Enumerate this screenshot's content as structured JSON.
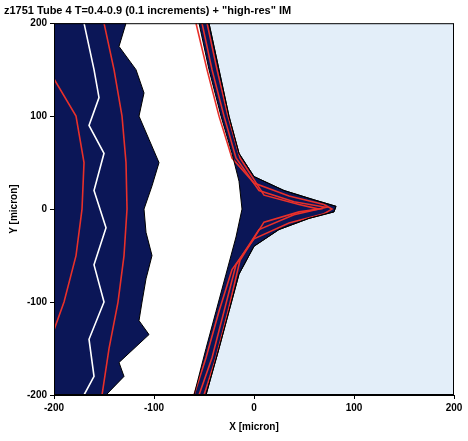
{
  "chart_data": {
    "type": "contour",
    "title": "z1751 Tube 4 T=0.4-0.9 (0.1 increments) + \"high-res\" IM",
    "x_label": "X [micron]",
    "y_label": "Y [micron]",
    "xlim": [
      -200,
      200
    ],
    "xticks": [
      -200,
      -100,
      0,
      100,
      200
    ],
    "ylim": [
      -200,
      200
    ],
    "yticks": [
      -200,
      -100,
      0,
      100,
      200
    ],
    "grid": false,
    "series": [
      {
        "type": "area",
        "color": "#e3eef9",
        "x": [
          -45,
          -35,
          -25,
          -15,
          0,
          30,
          60,
          82,
          80,
          55,
          25,
          0,
          -15,
          -25,
          -35,
          -48,
          200,
          200
        ],
        "values": [
          200,
          150,
          100,
          60,
          35,
          20,
          10,
          3,
          -3,
          -10,
          -22,
          -40,
          -70,
          -110,
          -150,
          -200,
          -200,
          200
        ]
      },
      {
        "type": "area",
        "color": "#0b1657",
        "x": [
          -200,
          -128,
          -135,
          -118,
          -110,
          -115,
          -105,
          -95,
          -102,
          -110,
          -108,
          -102,
          -108,
          -112,
          -115,
          -105,
          -120,
          -135,
          -130,
          -148,
          -200
        ],
        "values": [
          200,
          200,
          175,
          150,
          125,
          100,
          75,
          50,
          25,
          0,
          -25,
          -50,
          -75,
          -100,
          -120,
          -135,
          -150,
          -165,
          -180,
          -200,
          -200
        ]
      },
      {
        "type": "area",
        "color": "#0b1657",
        "x": [
          -55,
          -45,
          -33,
          -22,
          -15,
          -12,
          -18,
          -28,
          -38,
          -48,
          -60,
          -48,
          -35,
          -25,
          -15,
          0,
          25,
          55,
          80,
          82,
          60,
          30,
          0,
          -15,
          -25,
          -35,
          -45
        ],
        "values": [
          200,
          150,
          100,
          60,
          30,
          0,
          -30,
          -70,
          -110,
          -150,
          -200,
          -200,
          -150,
          -110,
          -70,
          -40,
          -22,
          -10,
          -3,
          3,
          10,
          20,
          35,
          60,
          100,
          150,
          200
        ]
      },
      {
        "type": "line",
        "color": "#ffffff",
        "x": [
          -170,
          -160,
          -155,
          -165,
          -150,
          -160,
          -148,
          -160,
          -150,
          -165,
          -160,
          -170
        ],
        "values": [
          200,
          150,
          120,
          90,
          60,
          20,
          -20,
          -60,
          -100,
          -140,
          -180,
          -200
        ]
      },
      {
        "type": "line",
        "color": "#e8302a",
        "x": [
          -200,
          -178,
          -170,
          -172,
          -178,
          -190,
          -200
        ],
        "values": [
          140,
          100,
          50,
          0,
          -50,
          -100,
          -130
        ]
      },
      {
        "type": "line",
        "color": "#e8302a",
        "x": [
          -150,
          -140,
          -132,
          -128,
          -127,
          -130,
          -136,
          -145,
          -152
        ],
        "values": [
          200,
          150,
          100,
          50,
          0,
          -50,
          -100,
          -150,
          -200
        ]
      },
      {
        "type": "line",
        "color": "#e8302a",
        "x": [
          -58,
          -47,
          -35,
          -22,
          0,
          35,
          70,
          78,
          70,
          35,
          0,
          -22,
          -35,
          -48,
          -60
        ],
        "values": [
          200,
          150,
          100,
          55,
          28,
          14,
          5,
          0,
          -5,
          -15,
          -32,
          -65,
          -110,
          -160,
          -200
        ]
      },
      {
        "type": "line",
        "color": "#e8302a",
        "x": [
          -52,
          -42,
          -30,
          -18,
          5,
          40,
          72,
          40,
          5,
          -18,
          -30,
          -42,
          -55
        ],
        "values": [
          200,
          150,
          100,
          55,
          20,
          8,
          2,
          -6,
          -22,
          -60,
          -110,
          -160,
          -200
        ]
      },
      {
        "type": "line",
        "color": "#e8302a",
        "x": [
          -47,
          -37,
          -26,
          -14,
          10,
          45,
          65,
          45,
          10,
          -14,
          -26,
          -38,
          -50
        ],
        "values": [
          200,
          150,
          100,
          55,
          15,
          5,
          0,
          -3,
          -14,
          -55,
          -110,
          -160,
          -200
        ]
      }
    ]
  }
}
